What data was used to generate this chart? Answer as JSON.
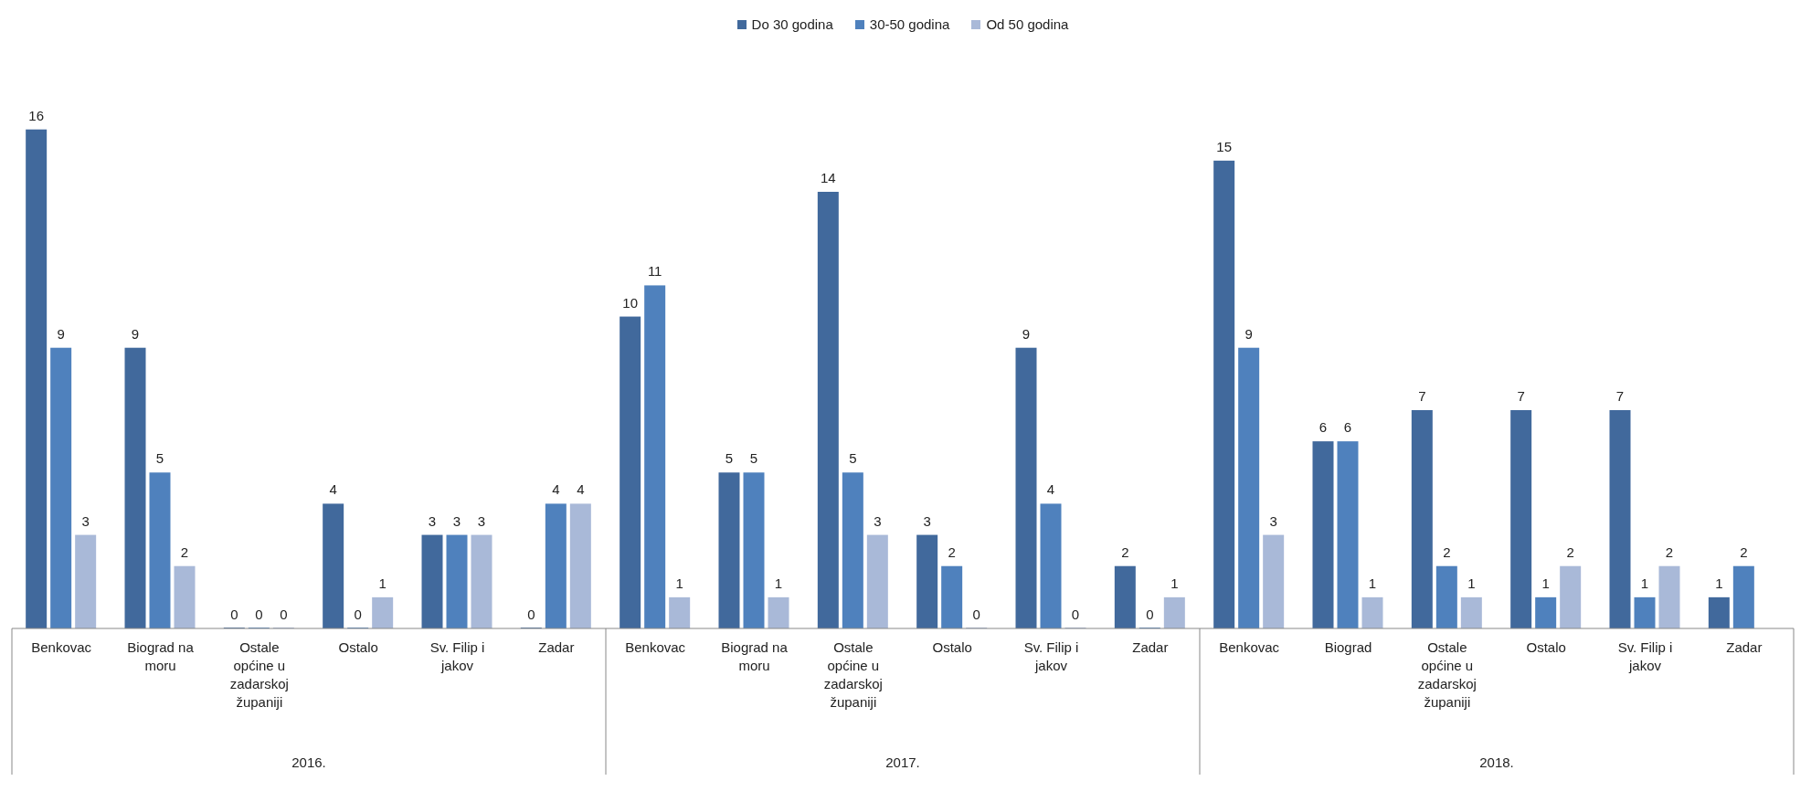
{
  "chart_data": {
    "type": "bar",
    "categories": [
      "Benkovac",
      "Biograd na moru",
      "Ostale općine u zadarskoj županiji",
      "Ostalo",
      "Sv. Filip i jakov",
      "Zadar",
      "Benkovac",
      "Biograd na moru",
      "Ostale općine u zadarskoj županiji",
      "Ostalo",
      "Sv. Filip i jakov",
      "Zadar",
      "Benkovac",
      "Biograd",
      "Ostale općine u zadarskoj županiji",
      "Ostalo",
      "Sv. Filip i jakov",
      "Zadar"
    ],
    "series": [
      {
        "name": "Do 30 godina",
        "color": "#41699c",
        "values": [
          16,
          9,
          0,
          4,
          3,
          0,
          10,
          5,
          14,
          3,
          9,
          2,
          15,
          6,
          7,
          7,
          7,
          1
        ]
      },
      {
        "name": "30-50 godina",
        "color": "#4f81bd",
        "values": [
          9,
          5,
          0,
          0,
          3,
          4,
          11,
          5,
          5,
          2,
          4,
          0,
          9,
          6,
          2,
          1,
          1,
          2
        ]
      },
      {
        "name": "Od 50 godina",
        "color": "#a9b9d8",
        "values": [
          3,
          2,
          0,
          1,
          3,
          4,
          1,
          1,
          3,
          0,
          0,
          1,
          3,
          1,
          1,
          2,
          2,
          null
        ]
      }
    ],
    "annotations": [
      "2016.",
      "2017.",
      "2018."
    ],
    "data_labels": true,
    "legend": "top",
    "grid": false
  }
}
